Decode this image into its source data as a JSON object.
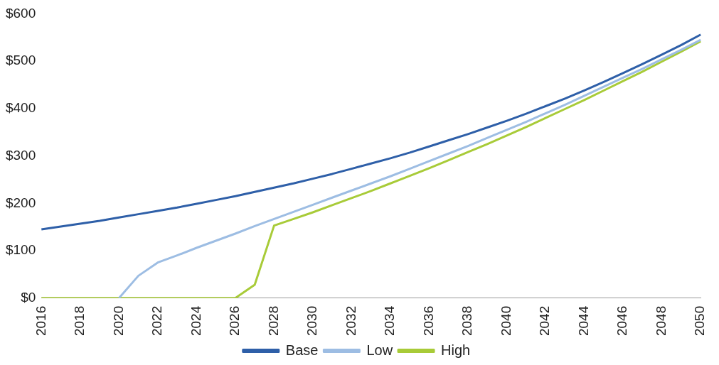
{
  "chart_data": {
    "type": "line",
    "categories": [
      "2016",
      null,
      "2018",
      null,
      "2020",
      null,
      "2022",
      null,
      "2024",
      null,
      "2026",
      null,
      "2028",
      null,
      "2030",
      null,
      "2032",
      null,
      "2034",
      null,
      "2036",
      null,
      "2038",
      null,
      "2040",
      null,
      "2042",
      null,
      "2044",
      null,
      "2046",
      null,
      "2048",
      null,
      "2050"
    ],
    "series": [
      {
        "name": "Base",
        "color": "#2e5fa8",
        "values": [
          145,
          151,
          157,
          163,
          170,
          177,
          184,
          191,
          199,
          207,
          215,
          224,
          233,
          242,
          252,
          262,
          273,
          284,
          295,
          307,
          320,
          333,
          346,
          360,
          374,
          389,
          405,
          421,
          438,
          456,
          475,
          494,
          514,
          534,
          556
        ]
      },
      {
        "name": "Low",
        "color": "#9dbde3",
        "values": [
          null,
          null,
          null,
          null,
          0,
          47,
          75,
          90,
          106,
          121,
          136,
          152,
          167,
          182,
          197,
          212,
          227,
          242,
          257,
          273,
          289,
          305,
          321,
          338,
          355,
          372,
          390,
          408,
          427,
          446,
          465,
          484,
          504,
          524,
          545
        ]
      },
      {
        "name": "High",
        "color": "#a8cb38",
        "values": [
          0,
          0,
          0,
          0,
          0,
          0,
          0,
          0,
          0,
          0,
          0,
          28,
          153,
          167,
          181,
          196,
          211,
          226,
          242,
          258,
          274,
          291,
          308,
          325,
          343,
          361,
          380,
          399,
          418,
          438,
          458,
          478,
          499,
          520,
          542
        ]
      }
    ],
    "ylim": [
      0,
      600
    ],
    "yticks": [
      {
        "value": 0,
        "label": "$0"
      },
      {
        "value": 100,
        "label": "$100"
      },
      {
        "value": 200,
        "label": "$200"
      },
      {
        "value": 300,
        "label": "$300"
      },
      {
        "value": 400,
        "label": "$400"
      },
      {
        "value": 500,
        "label": "$500"
      },
      {
        "value": 600,
        "label": "$600"
      }
    ],
    "grid": false,
    "legend": "bottom",
    "marker": "none",
    "line_style": "solid"
  }
}
